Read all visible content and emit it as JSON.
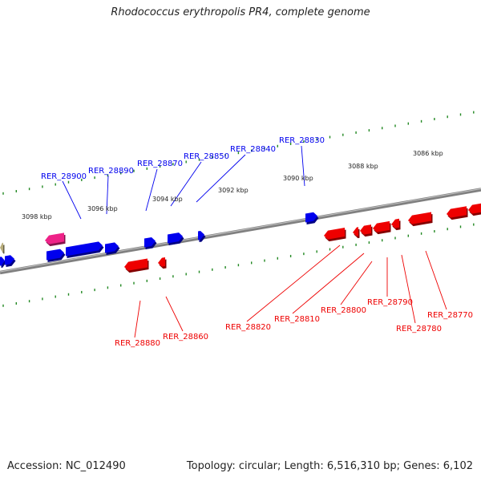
{
  "title": "Rhodococcus erythropolis PR4, complete genome",
  "footer": {
    "accession": "Accession: NC_012490",
    "topology": "Topology: circular; Length: 6,516,310 bp; Genes: 6,102"
  },
  "colors": {
    "forward_gene": "#0000ee",
    "reverse_gene": "#ee0000",
    "rna_gene": "#ee2288",
    "other_feature": "#b8ad7c",
    "tick": "#228822",
    "backbone": "#808080"
  },
  "scale_labels": [
    "3086 kbp",
    "3088 kbp",
    "3090 kbp",
    "3092 kbp",
    "3094 kbp",
    "3096 kbp",
    "3098 kbp"
  ],
  "forward_genes": [
    "RER_28900",
    "RER_28890",
    "RER_28870",
    "RER_28850",
    "RER_28840",
    "RER_28830"
  ],
  "reverse_genes": [
    "RER_28880",
    "RER_28860",
    "RER_28820",
    "RER_28810",
    "RER_28800",
    "RER_28790",
    "RER_28780",
    "RER_28770"
  ]
}
